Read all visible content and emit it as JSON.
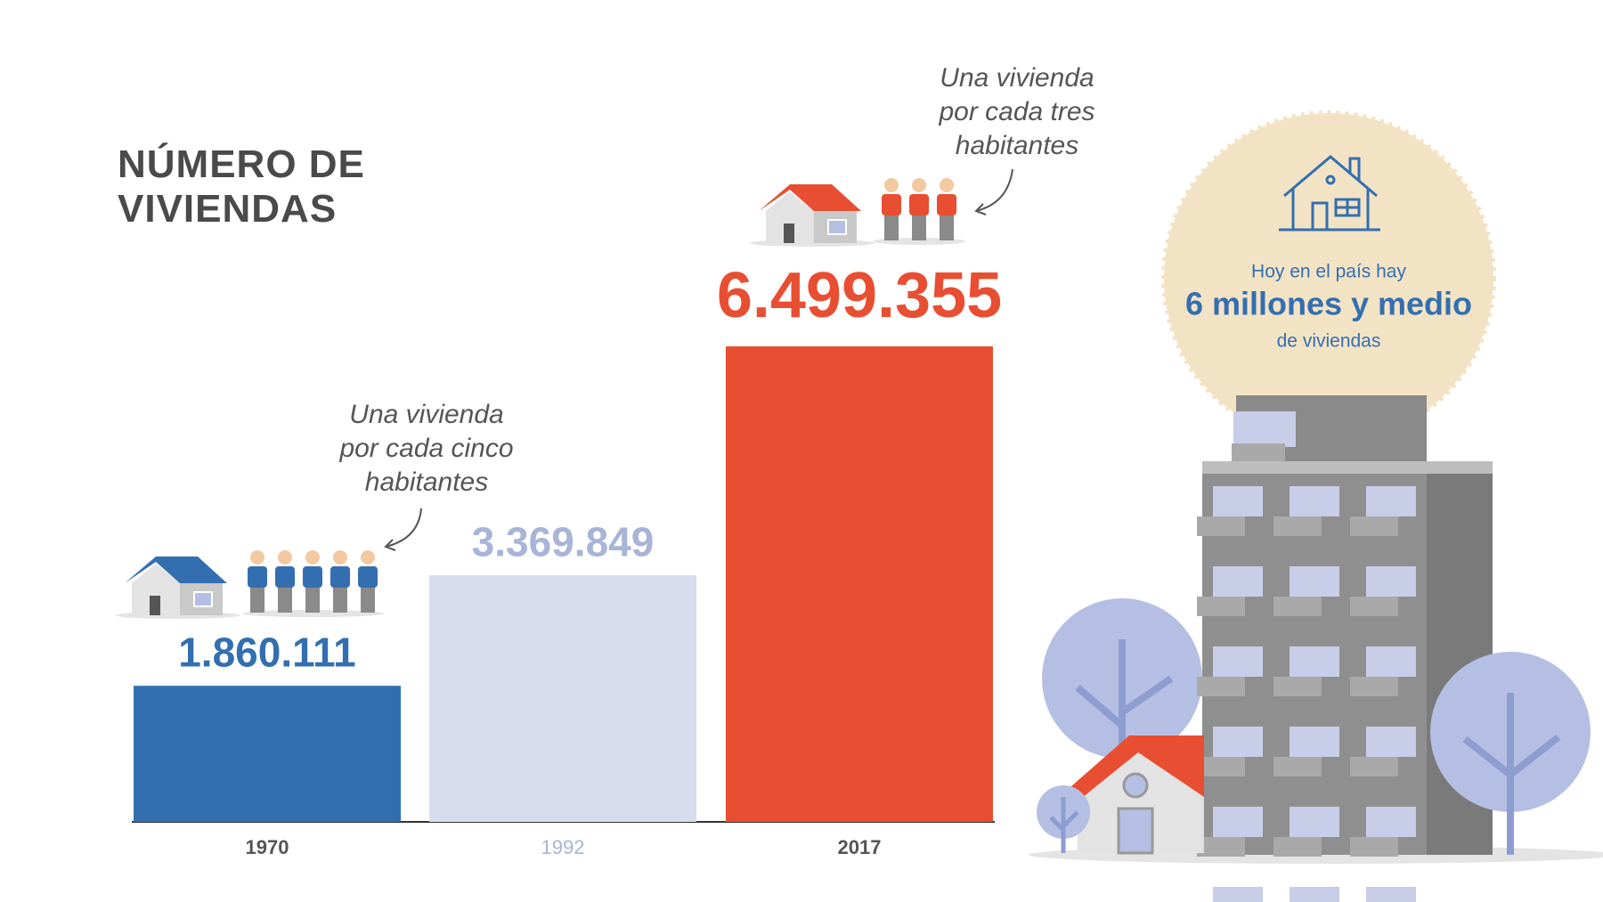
{
  "chart_data": {
    "type": "bar",
    "title": "NÚMERO DE VIVIENDAS",
    "categories": [
      "1970",
      "1992",
      "2017"
    ],
    "values": [
      1860111,
      3369849,
      6499355
    ],
    "value_labels": [
      "1.860.111",
      "3.369.849",
      "6.499.355"
    ],
    "colors": [
      "#336fb0",
      "#d8ddee",
      "#e84e32"
    ],
    "value_label_colors": [
      "#336fb0",
      "#a8b4d8",
      "#e84e32"
    ],
    "category_label_colors": [
      "#555555",
      "#a8b4d8",
      "#555555"
    ],
    "annotations": [
      {
        "lines": [
          "Una vivienda",
          "por cada cinco",
          "habitantes"
        ]
      },
      {
        "lines": [
          "Una vivienda",
          "por cada tres",
          "habitantes"
        ]
      }
    ],
    "callout": {
      "lines": [
        "Hoy en el país hay",
        "6 millones y medio",
        "de viviendas"
      ]
    }
  }
}
